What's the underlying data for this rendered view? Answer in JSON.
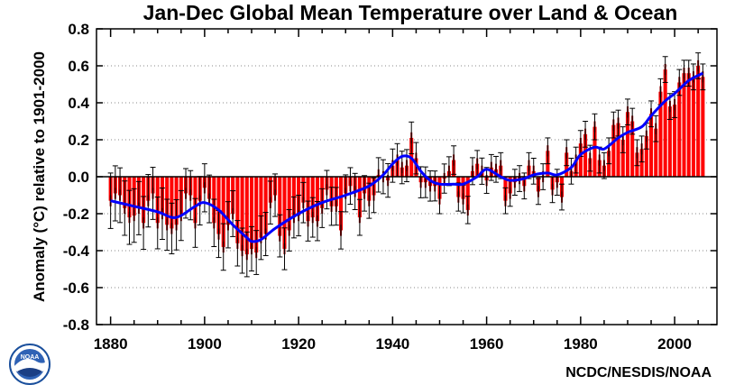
{
  "chart_data": {
    "type": "bar",
    "title": "Jan-Dec Global Mean Temperature over Land & Ocean",
    "ylabel": "Anomaly (°C) relative to 1901-2000",
    "xlabel": "",
    "xlim": [
      1877,
      2009
    ],
    "ylim": [
      -0.8,
      0.8
    ],
    "x_ticks": [
      1880,
      1900,
      1920,
      1940,
      1960,
      1980,
      2000
    ],
    "y_ticks": [
      0.8,
      0.6,
      0.4,
      0.2,
      0.0,
      -0.2,
      -0.4,
      -0.6,
      -0.8
    ],
    "y_tick_labels": [
      "0.8",
      "0.6",
      "0.4",
      "0.2",
      "0.0",
      "-0.2",
      "-0.4",
      "-0.6",
      "-0.8"
    ],
    "grid": "horizontal dotted",
    "bar_color": "#ff0000",
    "error_bar_color": "#000000",
    "smooth_color": "#0000ff",
    "x": [
      1880,
      1881,
      1882,
      1883,
      1884,
      1885,
      1886,
      1887,
      1888,
      1889,
      1890,
      1891,
      1892,
      1893,
      1894,
      1895,
      1896,
      1897,
      1898,
      1899,
      1900,
      1901,
      1902,
      1903,
      1904,
      1905,
      1906,
      1907,
      1908,
      1909,
      1910,
      1911,
      1912,
      1913,
      1914,
      1915,
      1916,
      1917,
      1918,
      1919,
      1920,
      1921,
      1922,
      1923,
      1924,
      1925,
      1926,
      1927,
      1928,
      1929,
      1930,
      1931,
      1932,
      1933,
      1934,
      1935,
      1936,
      1937,
      1938,
      1939,
      1940,
      1941,
      1942,
      1943,
      1944,
      1945,
      1946,
      1947,
      1948,
      1949,
      1950,
      1951,
      1952,
      1953,
      1954,
      1955,
      1956,
      1957,
      1958,
      1959,
      1960,
      1961,
      1962,
      1963,
      1964,
      1965,
      1966,
      1967,
      1968,
      1969,
      1970,
      1971,
      1972,
      1973,
      1974,
      1975,
      1976,
      1977,
      1978,
      1979,
      1980,
      1981,
      1982,
      1983,
      1984,
      1985,
      1986,
      1987,
      1988,
      1989,
      1990,
      1991,
      1992,
      1993,
      1994,
      1995,
      1996,
      1997,
      1998,
      1999,
      2000,
      2001,
      2002,
      2003,
      2004,
      2005,
      2006
    ],
    "values": [
      -0.13,
      -0.09,
      -0.1,
      -0.17,
      -0.22,
      -0.21,
      -0.17,
      -0.25,
      -0.13,
      -0.09,
      -0.25,
      -0.2,
      -0.26,
      -0.28,
      -0.26,
      -0.21,
      -0.09,
      -0.1,
      -0.25,
      -0.13,
      -0.06,
      -0.12,
      -0.25,
      -0.31,
      -0.38,
      -0.26,
      -0.2,
      -0.36,
      -0.4,
      -0.42,
      -0.39,
      -0.41,
      -0.33,
      -0.31,
      -0.14,
      -0.1,
      -0.32,
      -0.39,
      -0.29,
      -0.22,
      -0.21,
      -0.14,
      -0.24,
      -0.22,
      -0.24,
      -0.17,
      -0.07,
      -0.16,
      -0.16,
      -0.29,
      -0.09,
      -0.05,
      -0.08,
      -0.22,
      -0.09,
      -0.13,
      -0.1,
      0.01,
      0.0,
      -0.02,
      0.06,
      0.09,
      0.05,
      0.06,
      0.21,
      0.1,
      -0.03,
      -0.03,
      -0.05,
      -0.05,
      -0.12,
      -0.01,
      0.03,
      0.09,
      -0.11,
      -0.12,
      -0.18,
      0.03,
      0.07,
      0.03,
      -0.02,
      0.05,
      0.04,
      0.06,
      -0.13,
      -0.09,
      -0.03,
      -0.01,
      -0.05,
      0.06,
      0.03,
      -0.08,
      0.0,
      0.14,
      -0.07,
      -0.03,
      -0.11,
      0.13,
      0.03,
      0.09,
      0.18,
      0.23,
      0.1,
      0.27,
      0.09,
      0.06,
      0.14,
      0.28,
      0.29,
      0.2,
      0.35,
      0.3,
      0.13,
      0.15,
      0.22,
      0.34,
      0.26,
      0.46,
      0.58,
      0.38,
      0.39,
      0.51,
      0.56,
      0.56,
      0.54,
      0.6,
      0.54
    ],
    "smooth_x": [
      1880,
      1885,
      1890,
      1893,
      1895,
      1898,
      1900,
      1903,
      1906,
      1909,
      1910,
      1912,
      1915,
      1920,
      1925,
      1930,
      1935,
      1938,
      1940,
      1942,
      1944,
      1946,
      1948,
      1950,
      1953,
      1955,
      1958,
      1960,
      1963,
      1965,
      1968,
      1970,
      1973,
      1975,
      1978,
      1980,
      1983,
      1985,
      1988,
      1990,
      1993,
      1995,
      1998,
      2000,
      2003,
      2006
    ],
    "smooth_values": [
      -0.13,
      -0.16,
      -0.19,
      -0.22,
      -0.21,
      -0.16,
      -0.14,
      -0.18,
      -0.26,
      -0.33,
      -0.35,
      -0.34,
      -0.28,
      -0.2,
      -0.14,
      -0.1,
      -0.05,
      0.01,
      0.07,
      0.11,
      0.1,
      0.03,
      -0.02,
      -0.04,
      -0.04,
      -0.04,
      0.0,
      0.04,
      0.0,
      -0.02,
      -0.01,
      0.01,
      0.02,
      0.01,
      0.05,
      0.12,
      0.16,
      0.15,
      0.21,
      0.24,
      0.27,
      0.33,
      0.41,
      0.45,
      0.52,
      0.56
    ]
  },
  "footer": {
    "credit": "NCDC/NESDIS/NOAA",
    "logo_name": "noaa-logo",
    "logo_label": "NOAA"
  }
}
